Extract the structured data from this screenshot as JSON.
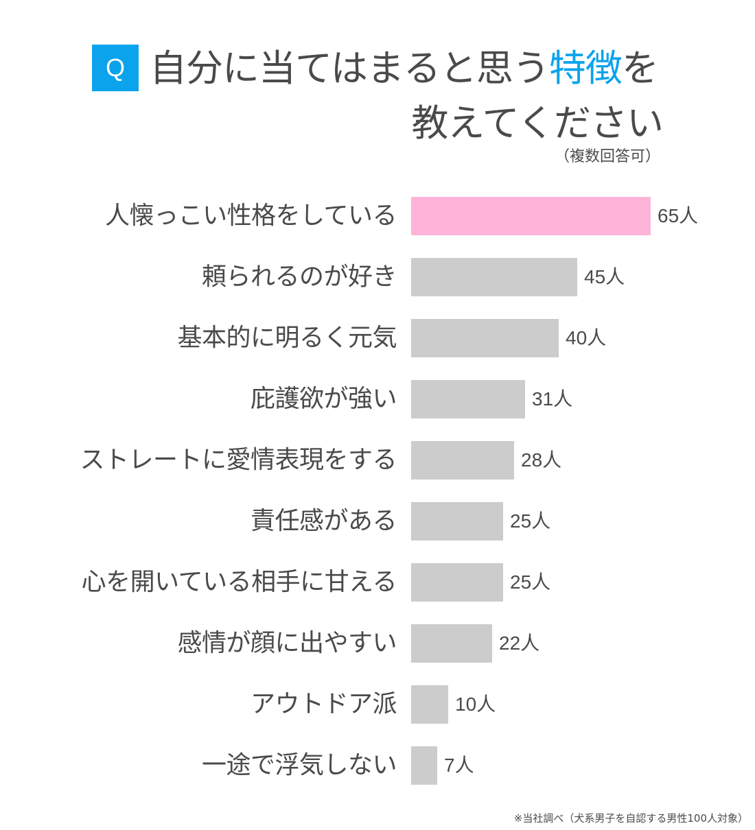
{
  "header": {
    "q_badge": "Q",
    "title_line1_before": "自分に当てはまると思う",
    "title_line1_accent": "特徴",
    "title_line1_after": "を",
    "title_line2": "教えてください",
    "note": "（複数回答可）"
  },
  "colors": {
    "accent": "#0aa3ec",
    "highlight_bar": "#feb4d8",
    "default_bar": "#cccccc",
    "text": "#4a4a4a"
  },
  "rows": [
    {
      "label": "人懐っこい性格をしている",
      "value": 65,
      "value_label": "65人",
      "highlight": true
    },
    {
      "label": "頼られるのが好き",
      "value": 45,
      "value_label": "45人",
      "highlight": false
    },
    {
      "label": "基本的に明るく元気",
      "value": 40,
      "value_label": "40人",
      "highlight": false
    },
    {
      "label": "庇護欲が強い",
      "value": 31,
      "value_label": "31人",
      "highlight": false
    },
    {
      "label": "ストレートに愛情表現をする",
      "value": 28,
      "value_label": "28人",
      "highlight": false
    },
    {
      "label": "責任感がある",
      "value": 25,
      "value_label": "25人",
      "highlight": false
    },
    {
      "label": "心を開いている相手に甘える",
      "value": 25,
      "value_label": "25人",
      "highlight": false
    },
    {
      "label": "感情が顔に出やすい",
      "value": 22,
      "value_label": "22人",
      "highlight": false
    },
    {
      "label": "アウトドア派",
      "value": 10,
      "value_label": "10人",
      "highlight": false
    },
    {
      "label": "一途で浮気しない",
      "value": 7,
      "value_label": "7人",
      "highlight": false
    }
  ],
  "footer": {
    "source": "※当社調べ（犬系男子を自認する男性100人対象）"
  },
  "chart_data": {
    "type": "bar",
    "orientation": "horizontal",
    "title": "自分に当てはまると思う特徴を教えてください",
    "subtitle": "（複数回答可）",
    "categories": [
      "人懐っこい性格をしている",
      "頼られるのが好き",
      "基本的に明るく元気",
      "庇護欲が強い",
      "ストレートに愛情表現をする",
      "責任感がある",
      "心を開いている相手に甘える",
      "感情が顔に出やすい",
      "アウトドア派",
      "一途で浮気しない"
    ],
    "values": [
      65,
      45,
      40,
      31,
      28,
      25,
      25,
      22,
      10,
      7
    ],
    "unit": "人",
    "xlabel": "",
    "ylabel": "",
    "grid": false,
    "legend": null,
    "annotations": [
      "※当社調べ（犬系男子を自認する男性100人対象）"
    ]
  }
}
